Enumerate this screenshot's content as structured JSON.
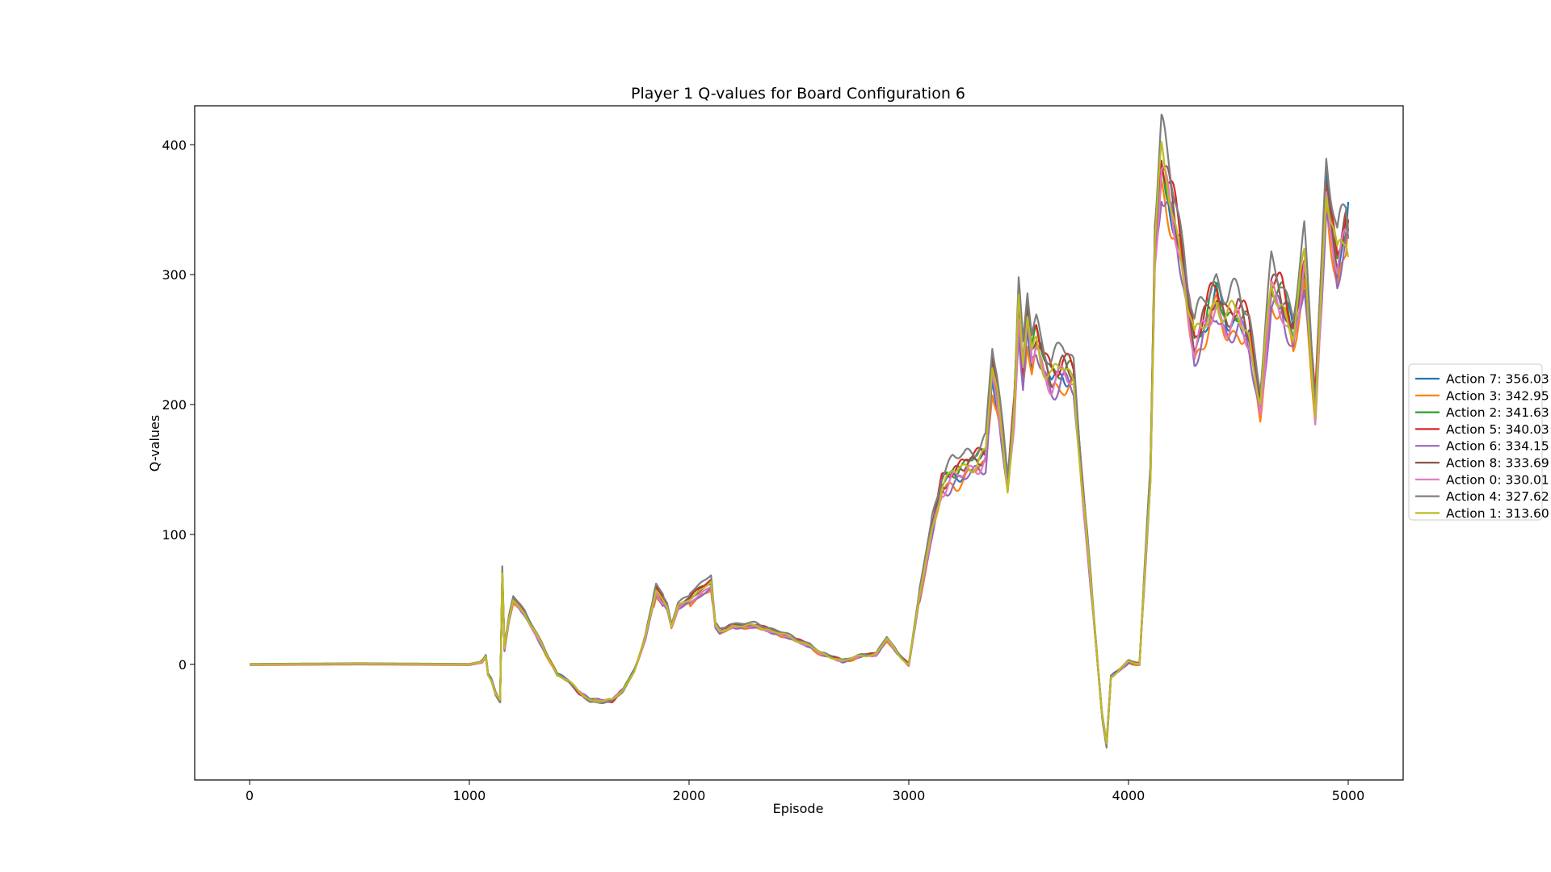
{
  "chart_data": {
    "type": "line",
    "title": "Player 1 Q-values for Board Configuration 6",
    "xlabel": "Episode",
    "ylabel": "Q-values",
    "xlim": [
      -250,
      5250
    ],
    "ylim": [
      -89,
      430
    ],
    "xticks": [
      0,
      1000,
      2000,
      3000,
      4000,
      5000
    ],
    "xtick_labels": [
      "0",
      "1000",
      "2000",
      "3000",
      "4000",
      "5000"
    ],
    "yticks": [
      0,
      100,
      200,
      300,
      400
    ],
    "ytick_labels": [
      "0",
      "100",
      "200",
      "300",
      "400"
    ],
    "grid": false,
    "legend_position": "center-right, outside plot",
    "base_x": [
      0,
      500,
      1000,
      1060,
      1075,
      1085,
      1100,
      1120,
      1140,
      1150,
      1160,
      1180,
      1200,
      1250,
      1300,
      1350,
      1400,
      1450,
      1500,
      1550,
      1600,
      1650,
      1700,
      1750,
      1800,
      1850,
      1900,
      1920,
      1950,
      2000,
      2050,
      2100,
      2120,
      2140,
      2200,
      2300,
      2400,
      2500,
      2550,
      2600,
      2700,
      2800,
      2850,
      2900,
      2950,
      3000,
      3050,
      3100,
      3150,
      3200,
      3250,
      3300,
      3350,
      3380,
      3400,
      3450,
      3480,
      3500,
      3520,
      3540,
      3560,
      3580,
      3600,
      3650,
      3700,
      3750,
      3800,
      3850,
      3880,
      3900,
      3920,
      3950,
      4000,
      4050,
      4100,
      4120,
      4150,
      4200,
      4250,
      4300,
      4350,
      4400,
      4450,
      4500,
      4550,
      4600,
      4650,
      4700,
      4750,
      4800,
      4850,
      4900,
      4950,
      5000
    ],
    "base_y": [
      0,
      0.5,
      0,
      2,
      6,
      -8,
      -12,
      -22,
      -28,
      70,
      12,
      35,
      50,
      40,
      25,
      8,
      -8,
      -12,
      -22,
      -28,
      -28,
      -28,
      -20,
      -5,
      20,
      58,
      45,
      30,
      45,
      50,
      58,
      64,
      30,
      25,
      30,
      30,
      25,
      18,
      15,
      8,
      3,
      7,
      8,
      20,
      8,
      0,
      55,
      100,
      140,
      150,
      150,
      158,
      165,
      230,
      210,
      140,
      200,
      280,
      230,
      270,
      240,
      250,
      240,
      225,
      230,
      220,
      120,
      20,
      -40,
      -62,
      -10,
      -5,
      2,
      0,
      150,
      330,
      390,
      350,
      310,
      250,
      265,
      285,
      270,
      270,
      255,
      205,
      290,
      280,
      260,
      310,
      195,
      375,
      310,
      340
    ],
    "series": [
      {
        "name": "Action 7: 356.03",
        "color": "#1f77b4",
        "scale": 0.985,
        "offset": 0,
        "end": 356.03
      },
      {
        "name": "Action 3: 342.95",
        "color": "#ff7f0e",
        "scale": 0.965,
        "offset": -4,
        "end": 342.95
      },
      {
        "name": "Action 2: 341.63",
        "color": "#2ca02c",
        "scale": 1.0,
        "offset": 1,
        "end": 341.63
      },
      {
        "name": "Action 5: 340.03",
        "color": "#d62728",
        "scale": 1.02,
        "offset": 0,
        "end": 340.03
      },
      {
        "name": "Action 6: 334.15",
        "color": "#9467bd",
        "scale": 0.96,
        "offset": -3,
        "end": 334.15
      },
      {
        "name": "Action 8: 333.69",
        "color": "#8c564b",
        "scale": 1.0,
        "offset": -1,
        "end": 333.69
      },
      {
        "name": "Action 0: 330.01",
        "color": "#e377c2",
        "scale": 0.975,
        "offset": -2,
        "end": 330.01
      },
      {
        "name": "Action 4: 327.62",
        "color": "#7f7f7f",
        "scale": 1.045,
        "offset": 2,
        "end": 327.62
      },
      {
        "name": "Action 1: 313.60",
        "color": "#bcbd22",
        "scale": 0.99,
        "offset": 0,
        "end": 313.6
      }
    ]
  }
}
